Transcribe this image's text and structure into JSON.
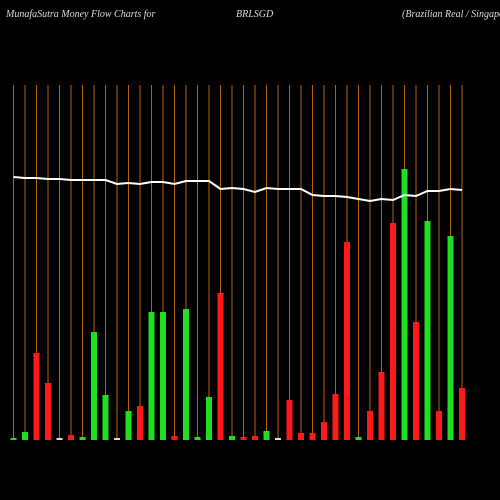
{
  "chart_data": {
    "type": "bar",
    "title": "MunafaSutra  Money  Flow  Charts for",
    "symbol": "BRLSGD",
    "subtitle": "(Brazilian  Real / Singapore",
    "categories": [
      null,
      null,
      null,
      null,
      null,
      null,
      null,
      null,
      null,
      null,
      null,
      null,
      null,
      null,
      null,
      null,
      null,
      null,
      null,
      null,
      null,
      null,
      null,
      null,
      null,
      null,
      null,
      null,
      null,
      null,
      null,
      null,
      null,
      null,
      null,
      null,
      null,
      null,
      null,
      null
    ],
    "ylim": [
      0,
      280
    ],
    "series": [
      {
        "values": [
          2,
          8,
          87,
          57,
          2,
          5,
          3,
          108,
          45,
          2,
          29,
          34,
          128,
          128,
          4,
          131,
          3,
          43,
          147,
          4,
          3,
          4,
          9,
          2,
          40,
          7,
          7,
          18,
          46,
          198,
          3,
          29,
          68,
          217,
          271,
          118,
          219,
          29,
          204,
          52
        ],
        "colors": [
          "#1fe01f",
          "#1fe01f",
          "#ff1a1a",
          "#ff1a1a",
          "#dddddd",
          "#ff1a1a",
          "#1fe01f",
          "#1fe01f",
          "#1fe01f",
          "#dddddd",
          "#1fe01f",
          "#ff1a1a",
          "#1fe01f",
          "#1fe01f",
          "#ff1a1a",
          "#1fe01f",
          "#1fe01f",
          "#1fe01f",
          "#ff1a1a",
          "#1fe01f",
          "#ff1a1a",
          "#ff1a1a",
          "#1fe01f",
          "#dddddd",
          "#ff1a1a",
          "#ff1a1a",
          "#ff1a1a",
          "#ff1a1a",
          "#ff1a1a",
          "#ff1a1a",
          "#1fe01f",
          "#ff1a1a",
          "#ff1a1a",
          "#ff1a1a",
          "#1fe01f",
          "#ff1a1a",
          "#1fe01f",
          "#ff1a1a",
          "#1fe01f",
          "#ff1a1a"
        ]
      },
      {
        "type": "line",
        "color": "#ffffff",
        "values": [
          263,
          262,
          262,
          261,
          261,
          260,
          260,
          260,
          260,
          256,
          257,
          256,
          258,
          258,
          256,
          259,
          259,
          259,
          251,
          252,
          251,
          248,
          252,
          251,
          251,
          251,
          245,
          244,
          244,
          243,
          241,
          239,
          241,
          240,
          245,
          244,
          249,
          249,
          251,
          250
        ]
      }
    ],
    "gridline_color": "#b8620a"
  }
}
